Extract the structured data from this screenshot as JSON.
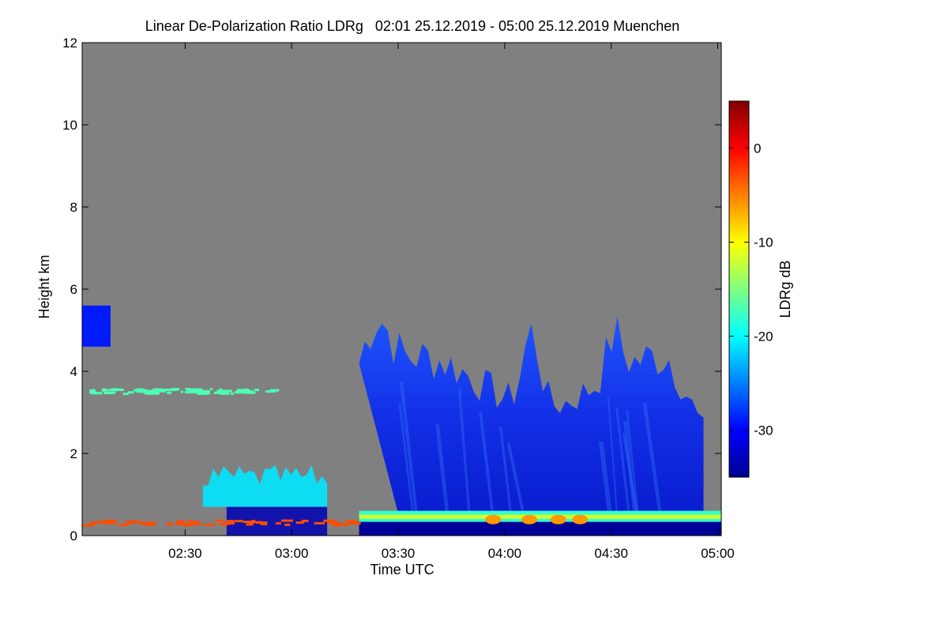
{
  "chart_data": {
    "type": "heatmap",
    "title": "Linear De-Polarization Ratio LDRg   02:01 25.12.2019 - 05:00 25.12.2019 Muenchen",
    "xlabel": "Time UTC",
    "ylabel": "Height km",
    "x_range": [
      "02:01",
      "05:01"
    ],
    "x_ticks": [
      "02:30",
      "03:00",
      "03:30",
      "04:00",
      "04:30",
      "05:00"
    ],
    "ylim": [
      0,
      12
    ],
    "y_ticks": [
      "0",
      "2",
      "4",
      "6",
      "8",
      "10",
      "12"
    ],
    "colorbar": {
      "label": "LDRg dB",
      "range": [
        -35,
        5
      ],
      "ticks": [
        "0",
        "-10",
        "-20",
        "-30"
      ],
      "colormap": "jet"
    },
    "background_color": "#808080",
    "features": [
      {
        "kind": "cloud",
        "time_start": "03:19",
        "time_end": "04:56",
        "base_km": 0.5,
        "top_km": 5.7,
        "ldr_db": -31
      },
      {
        "kind": "cloud",
        "time_start": "02:01",
        "time_end": "02:09",
        "base_km": 4.6,
        "top_km": 5.6,
        "ldr_db": -29
      },
      {
        "kind": "low-cloud",
        "time_start": "02:35",
        "time_end": "03:10",
        "base_km": 0.7,
        "top_km": 1.9,
        "ldr_db": -21
      },
      {
        "kind": "bright-band",
        "time_start": "03:19",
        "time_end": "05:01",
        "height_km": 0.45,
        "ldr_db": -18
      },
      {
        "kind": "layer",
        "time_start": "02:01",
        "time_end": "03:18",
        "height_km": 0.3,
        "ldr_db": -3
      },
      {
        "kind": "layer",
        "time_start": "02:03",
        "time_end": "02:55",
        "height_km": 3.5,
        "ldr_db": -17
      }
    ]
  }
}
